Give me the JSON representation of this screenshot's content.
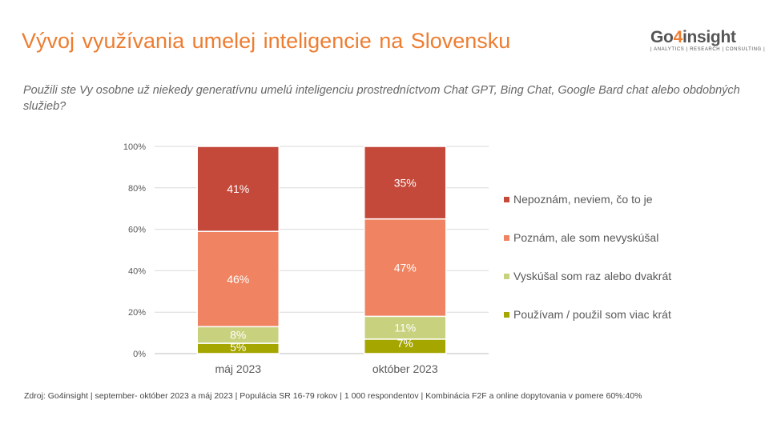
{
  "header": {
    "title": "Vývoj využívania umelej inteligencie na Slovensku",
    "logo_text_main": "Go",
    "logo_text_accent": "4",
    "logo_text_end": "insight",
    "logo_tagline": "| ANALYTICS | RESEARCH | CONSULTING |"
  },
  "question": "Použili ste Vy osobne už niekedy generatívnu umelú inteligenciu prostredníctvom Chat GPT, Bing Chat, Google Bard chat alebo obdobných služieb?",
  "source": "Zdroj: Go4insight | september- október 2023 a máj 2023 | Populácia SR 16-79 rokov | 1 000 respondentov | Kombinácia F2F a online dopytovania v pomere 60%:40%",
  "colors": {
    "title": "#ED7D31",
    "series": [
      "#A6A600",
      "#C8D17E",
      "#F08462",
      "#C5493A"
    ]
  },
  "chart_data": {
    "type": "bar",
    "stacked": true,
    "categories": [
      "máj 2023",
      "október 2023"
    ],
    "series": [
      {
        "name": "Používam / použil som viac krát",
        "values": [
          5,
          7
        ],
        "labels": [
          "5%",
          "7%"
        ]
      },
      {
        "name": "Vyskúšal som raz alebo dvakrát",
        "values": [
          8,
          11
        ],
        "labels": [
          "8%",
          "11%"
        ]
      },
      {
        "name": "Poznám, ale som nevyskúšal",
        "values": [
          46,
          47
        ],
        "labels": [
          "46%",
          "47%"
        ]
      },
      {
        "name": "Nepoznám, neviem, čo to je",
        "values": [
          41,
          35
        ],
        "labels": [
          "41%",
          "35%"
        ]
      }
    ],
    "yticks": [
      "0%",
      "20%",
      "40%",
      "60%",
      "80%",
      "100%"
    ],
    "ylim": [
      0,
      100
    ],
    "grid": true,
    "legend_position": "right",
    "legend_order": [
      3,
      2,
      1,
      0
    ]
  }
}
